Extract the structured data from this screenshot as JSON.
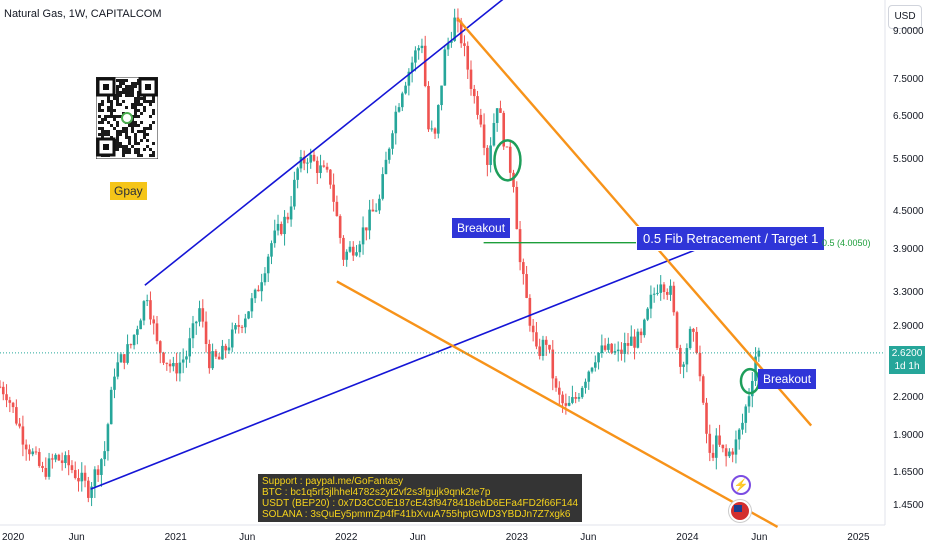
{
  "header": {
    "title": "Natural Gas, 1W, CAPITALCOM",
    "currency_button": "USD"
  },
  "annotations": {
    "gpay_label": "Gpay",
    "breakout_left": "Breakout",
    "breakout_right": "Breakout",
    "fib_box": "0.5 Fib Retracement / Target 1",
    "fib_level_label": "0.5 (4.0050)",
    "support_lines": [
      "Support : paypal.me/GoFantasy",
      "BTC : bc1q5rf3jlhhel4782s2yt2vf2s3fgujk9qnk2te7p",
      "USDT (BEP20) : 0x7D3CC0E187cE43f9478418ebD6EFa4FD2f66F144",
      "SOLANA :  3sQuEy5pmmZp4fF41bXvuA755hptGWD3YBDJn7Z7xgk6"
    ]
  },
  "price_axis": {
    "ticks": [
      "9.0000",
      "7.5000",
      "6.5000",
      "5.5000",
      "4.5000",
      "3.9000",
      "3.3000",
      "2.9000",
      "2.2000",
      "1.9000",
      "1.6500",
      "1.4500"
    ],
    "last_price": "2.6200",
    "last_price_sub": "1d 1h"
  },
  "time_axis": {
    "ticks": [
      "2020",
      "Jun",
      "2021",
      "Jun",
      "2022",
      "Jun",
      "2023",
      "Jun",
      "2024",
      "Jun",
      "2025"
    ]
  },
  "colors": {
    "up": "#26a69a",
    "down": "#ef5350",
    "channel": "#1515d6",
    "wedge": "#f7931a",
    "fib": "#1d9e3a",
    "circle": "#1e9e5a"
  },
  "chart_data": {
    "type": "candlestick",
    "title": "Natural Gas, 1W, CAPITALCOM",
    "y_scale": "log",
    "ylim": [
      1.35,
      10.2
    ],
    "xlim": [
      "2019-12-20",
      "2025-02-25"
    ],
    "x_ticks": [
      {
        "label": "2020",
        "date": "2020-01-01"
      },
      {
        "label": "Jun",
        "date": "2020-06-01"
      },
      {
        "label": "2021",
        "date": "2021-01-01"
      },
      {
        "label": "Jun",
        "date": "2021-06-01"
      },
      {
        "label": "2022",
        "date": "2022-01-01"
      },
      {
        "label": "Jun",
        "date": "2022-06-01"
      },
      {
        "label": "2023",
        "date": "2023-01-01"
      },
      {
        "label": "Jun",
        "date": "2023-06-01"
      },
      {
        "label": "2024",
        "date": "2024-01-01"
      },
      {
        "label": "Jun",
        "date": "2024-06-01"
      },
      {
        "label": "2025",
        "date": "2025-01-01"
      }
    ],
    "y_ticks": [
      9.0,
      7.5,
      6.5,
      5.5,
      4.5,
      3.9,
      3.3,
      2.9,
      2.2,
      1.9,
      1.65,
      1.45
    ],
    "anchor_closes": [
      [
        "2019-12-20",
        2.3
      ],
      [
        "2020-01-03",
        2.25
      ],
      [
        "2020-02-07",
        1.9
      ],
      [
        "2020-03-20",
        1.65
      ],
      [
        "2020-04-17",
        1.75
      ],
      [
        "2020-05-15",
        1.7
      ],
      [
        "2020-06-26",
        1.55
      ],
      [
        "2020-07-31",
        1.8
      ],
      [
        "2020-08-21",
        2.45
      ],
      [
        "2020-09-25",
        2.7
      ],
      [
        "2020-10-30",
        3.3
      ],
      [
        "2020-11-20",
        2.7
      ],
      [
        "2020-12-25",
        2.45
      ],
      [
        "2021-01-22",
        2.6
      ],
      [
        "2021-02-19",
        3.1
      ],
      [
        "2021-03-12",
        2.55
      ],
      [
        "2021-04-02",
        2.55
      ],
      [
        "2021-05-07",
        2.85
      ],
      [
        "2021-06-18",
        3.25
      ],
      [
        "2021-07-23",
        4.0
      ],
      [
        "2021-08-27",
        4.45
      ],
      [
        "2021-09-17",
        5.3
      ],
      [
        "2021-10-08",
        5.6
      ],
      [
        "2021-11-05",
        5.3
      ],
      [
        "2021-11-26",
        5.1
      ],
      [
        "2021-12-24",
        3.8
      ],
      [
        "2022-01-21",
        4.0
      ],
      [
        "2022-02-11",
        4.3
      ],
      [
        "2022-03-11",
        4.7
      ],
      [
        "2022-04-08",
        6.3
      ],
      [
        "2022-04-29",
        7.3
      ],
      [
        "2022-05-27",
        8.3
      ],
      [
        "2022-06-10",
        8.7
      ],
      [
        "2022-06-24",
        6.2
      ],
      [
        "2022-07-08",
        6.0
      ],
      [
        "2022-07-29",
        8.3
      ],
      [
        "2022-08-19",
        9.4
      ],
      [
        "2022-09-02",
        8.8
      ],
      [
        "2022-09-30",
        7.0
      ],
      [
        "2022-10-14",
        6.5
      ],
      [
        "2022-10-28",
        5.5
      ],
      [
        "2022-11-18",
        6.9
      ],
      [
        "2022-12-09",
        5.6
      ],
      [
        "2022-12-23",
        5.1
      ],
      [
        "2023-01-06",
        3.7
      ],
      [
        "2023-01-20",
        3.2
      ],
      [
        "2023-02-10",
        2.6
      ],
      [
        "2023-03-03",
        2.75
      ],
      [
        "2023-03-24",
        2.25
      ],
      [
        "2023-04-14",
        2.1
      ],
      [
        "2023-05-05",
        2.2
      ],
      [
        "2023-05-26",
        2.4
      ],
      [
        "2023-06-16",
        2.6
      ],
      [
        "2023-07-07",
        2.65
      ],
      [
        "2023-08-04",
        2.6
      ],
      [
        "2023-09-01",
        2.75
      ],
      [
        "2023-09-22",
        2.75
      ],
      [
        "2023-10-13",
        3.2
      ],
      [
        "2023-11-03",
        3.5
      ],
      [
        "2023-11-24",
        3.3
      ],
      [
        "2023-12-15",
        2.5
      ],
      [
        "2024-01-05",
        2.8
      ],
      [
        "2024-01-19",
        2.7
      ],
      [
        "2024-02-02",
        2.1
      ],
      [
        "2024-02-16",
        1.75
      ],
      [
        "2024-03-01",
        1.85
      ],
      [
        "2024-03-22",
        1.75
      ],
      [
        "2024-04-12",
        1.85
      ],
      [
        "2024-04-26",
        2.0
      ],
      [
        "2024-05-10",
        2.25
      ],
      [
        "2024-05-24",
        2.6
      ],
      [
        "2024-05-31",
        2.62
      ]
    ],
    "lines": [
      {
        "name": "channel-lower",
        "from": [
          "2020-07-01",
          1.55
        ],
        "to": [
          "2024-05-01",
          4.2
        ]
      },
      {
        "name": "channel-upper",
        "from": [
          "2020-10-25",
          3.4
        ],
        "to": [
          "2023-01-20",
          11.0
        ]
      },
      {
        "name": "wedge-upper",
        "from": [
          "2022-08-25",
          9.5
        ],
        "to": [
          "2024-09-20",
          1.98
        ]
      },
      {
        "name": "wedge-lower",
        "from": [
          "2021-12-10",
          3.45
        ],
        "to": [
          "2024-07-10",
          1.34
        ]
      },
      {
        "name": "fib-0.5",
        "from": [
          "2022-10-20",
          4.005
        ],
        "to": [
          "2024-10-05",
          4.005
        ]
      }
    ],
    "circles": [
      {
        "name": "breakout-circle-left",
        "date": "2022-12-10",
        "value": 5.5
      },
      {
        "name": "breakout-circle-right",
        "date": "2024-05-12",
        "value": 2.35
      }
    ],
    "fib_level": 4.005,
    "last_price": 2.62
  }
}
